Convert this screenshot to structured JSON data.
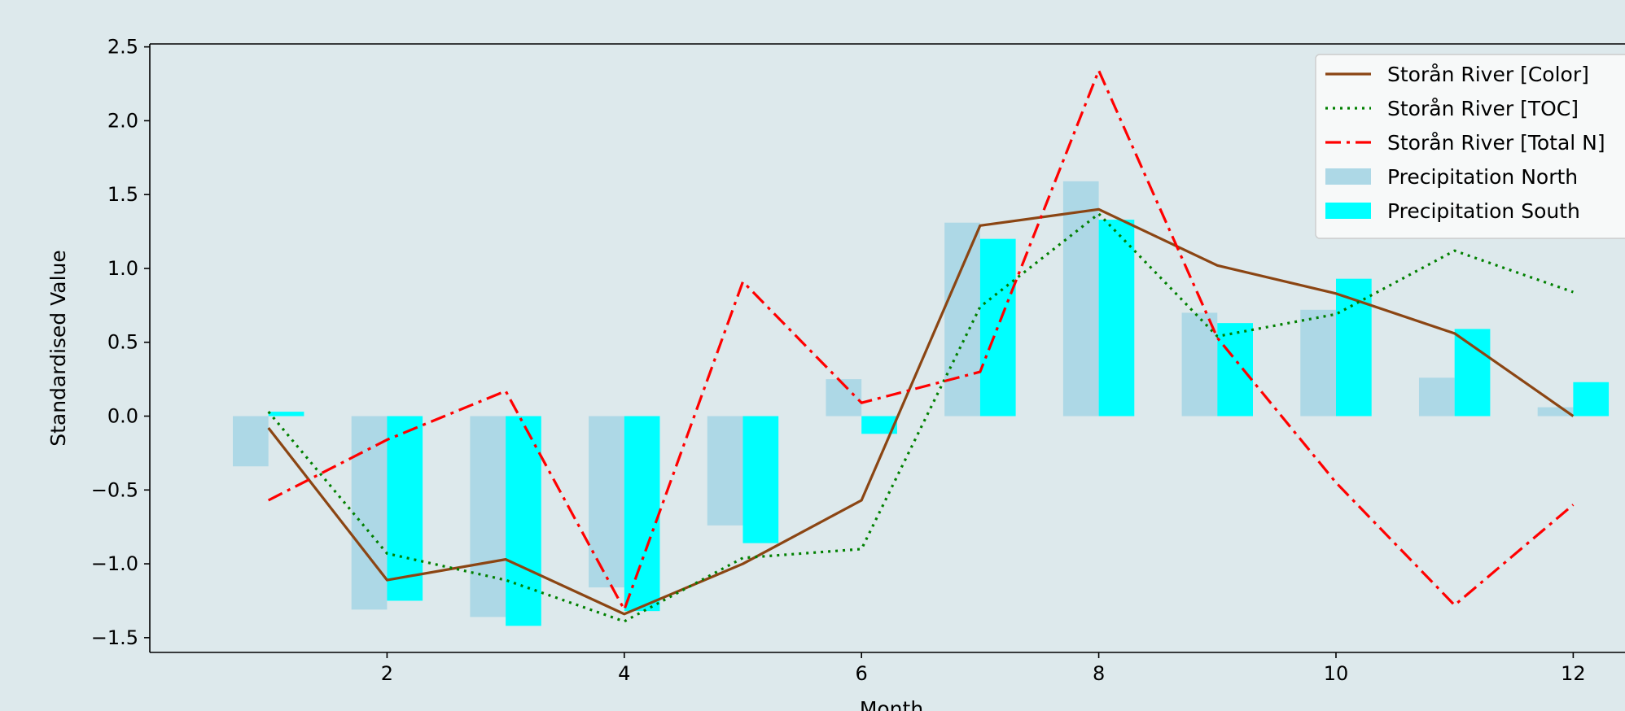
{
  "chart_data": {
    "type": "bar+line",
    "xlabel": "Month",
    "ylabel": "Standardised Value",
    "xlim": [
      0.0,
      12.67
    ],
    "ylim": [
      -1.6,
      2.52
    ],
    "x_ticks": [
      2,
      4,
      6,
      8,
      10,
      12
    ],
    "y_ticks": [
      -1.5,
      -1.0,
      -0.5,
      0.0,
      0.5,
      1.0,
      1.5,
      2.0,
      2.5
    ],
    "x_tick_labels": [
      "2",
      "4",
      "6",
      "8",
      "10",
      "12"
    ],
    "y_tick_labels": [
      "−1.5",
      "−1.0",
      "−0.5",
      "0.0",
      "0.5",
      "1.0",
      "1.5",
      "2.0",
      "2.5"
    ],
    "months": [
      1,
      2,
      3,
      4,
      5,
      6,
      7,
      8,
      9,
      10,
      11,
      12
    ],
    "bar_series": [
      {
        "name": "Precipitation North",
        "color": "#add8e6",
        "offset": -0.3,
        "values": [
          -0.34,
          -1.31,
          -1.36,
          -1.16,
          -0.74,
          0.25,
          1.31,
          1.59,
          0.7,
          0.72,
          0.26,
          0.06
        ]
      },
      {
        "name": "Precipitation South",
        "color": "#00ffff",
        "offset": 0.0,
        "values": [
          0.03,
          -1.25,
          -1.42,
          -1.32,
          -0.86,
          -0.12,
          1.2,
          1.33,
          0.63,
          0.93,
          0.59,
          0.23
        ]
      }
    ],
    "line_series": [
      {
        "name": "Storån River [Color]",
        "color": "#8b4513",
        "dash": "solid",
        "values": [
          -0.08,
          -1.11,
          -0.97,
          -1.34,
          -1.0,
          -0.57,
          1.29,
          1.4,
          1.02,
          0.83,
          0.56,
          0.0
        ]
      },
      {
        "name": "Storån River [TOC]",
        "color": "#008000",
        "dash": "dotted",
        "values": [
          0.03,
          -0.93,
          -1.11,
          -1.39,
          -0.96,
          -0.9,
          0.74,
          1.37,
          0.54,
          0.69,
          1.12,
          0.84
        ]
      },
      {
        "name": "Storån River [Total N]",
        "color": "#ff0000",
        "dash": "dashdot",
        "values": [
          -0.57,
          -0.16,
          0.17,
          -1.31,
          0.91,
          0.09,
          0.3,
          2.34,
          0.53,
          -0.45,
          -1.28,
          -0.6
        ]
      }
    ],
    "legend": {
      "position": "upper right",
      "entries": [
        {
          "label": "Storån River [Color]",
          "kind": "line",
          "color": "#8b4513",
          "dash": "solid"
        },
        {
          "label": "Storån River [TOC]",
          "kind": "line",
          "color": "#008000",
          "dash": "dotted"
        },
        {
          "label": "Storån River [Total N]",
          "kind": "line",
          "color": "#ff0000",
          "dash": "dashdot"
        },
        {
          "label": "Precipitation North",
          "kind": "patch",
          "color": "#add8e6"
        },
        {
          "label": "Precipitation South",
          "kind": "patch",
          "color": "#00ffff"
        }
      ]
    },
    "grid": false,
    "colors": {
      "figure_background": "#dde9ec",
      "axes_background": "#dde9ec"
    }
  }
}
